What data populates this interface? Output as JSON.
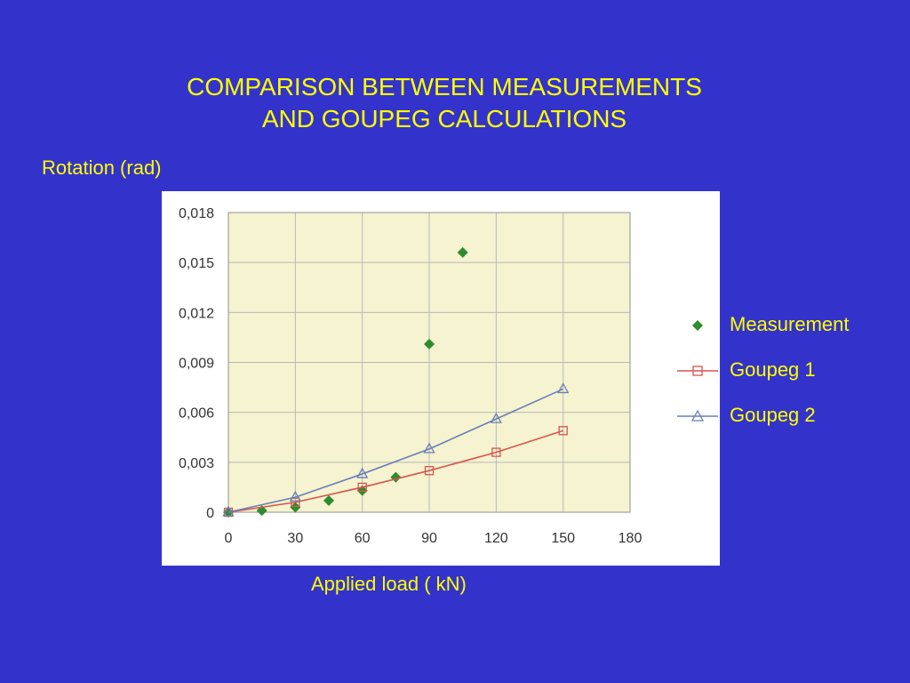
{
  "slide": {
    "title_line1": "COMPARISON  BETWEEN  MEASUREMENTS",
    "title_line2": "AND GOUPEG CALCULATIONS",
    "background": "#3333CC",
    "text_color": "#FFFF00"
  },
  "chart_data": {
    "type": "scatter",
    "xlabel": "Applied load  ( kN)",
    "ylabel": "Rotation (rad)",
    "xlim": [
      0,
      180
    ],
    "ylim": [
      0,
      0.018
    ],
    "x_ticks": [
      "0",
      "30",
      "60",
      "90",
      "120",
      "150",
      "180"
    ],
    "y_ticks": [
      "0",
      "0,003",
      "0,006",
      "0,009",
      "0,012",
      "0,015",
      "0,018"
    ],
    "grid": true,
    "plot_background": "#F5F3D0",
    "legend_position": "right",
    "series": [
      {
        "name": "Measurement",
        "marker": "diamond",
        "line": false,
        "color": "#2E8B2E",
        "x": [
          0,
          15,
          30,
          45,
          60,
          75,
          90,
          105
        ],
        "y": [
          0.0,
          0.0001,
          0.0003,
          0.0007,
          0.0013,
          0.0021,
          0.0101,
          0.0156
        ]
      },
      {
        "name": "Goupeg 1",
        "marker": "square",
        "line": true,
        "color": "#D9534F",
        "x": [
          0,
          30,
          60,
          90,
          120,
          150
        ],
        "y": [
          0.0,
          0.0006,
          0.0015,
          0.0025,
          0.0036,
          0.0049
        ]
      },
      {
        "name": "Goupeg 2",
        "marker": "triangle",
        "line": true,
        "color": "#6A7FB5",
        "x": [
          0,
          30,
          60,
          90,
          120,
          150
        ],
        "y": [
          0.0,
          0.0009,
          0.0023,
          0.0038,
          0.0056,
          0.0074
        ]
      }
    ]
  }
}
